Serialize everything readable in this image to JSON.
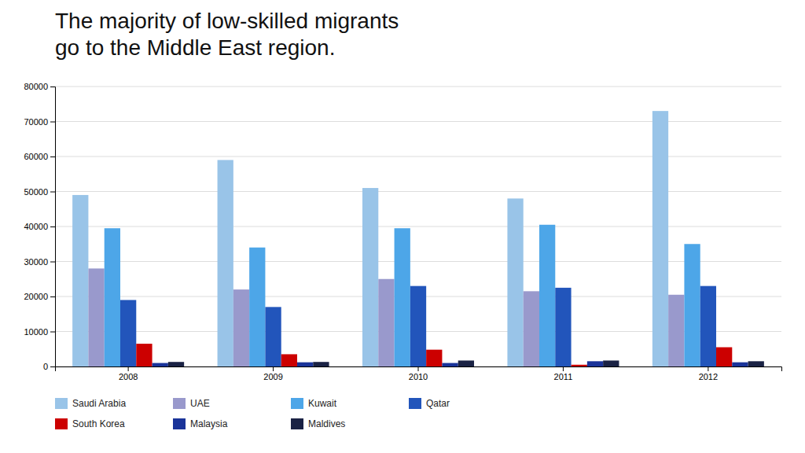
{
  "chart_data": {
    "type": "bar",
    "title": "The majority of low-skilled migrants\ngo to the Middle East region.",
    "categories": [
      "2008",
      "2009",
      "2010",
      "2011",
      "2012"
    ],
    "series": [
      {
        "name": "Saudi Arabia",
        "color": "#99c4e8",
        "values": [
          49000,
          59000,
          51000,
          48000,
          73000
        ]
      },
      {
        "name": "UAE",
        "color": "#9999cc",
        "values": [
          28000,
          22000,
          25000,
          21500,
          20500
        ]
      },
      {
        "name": "Kuwait",
        "color": "#4da6e8",
        "values": [
          39500,
          34000,
          39500,
          40500,
          35000
        ]
      },
      {
        "name": "Qatar",
        "color": "#2255bb",
        "values": [
          19000,
          17000,
          23000,
          22500,
          23000
        ]
      },
      {
        "name": "South Korea",
        "color": "#cc0000",
        "values": [
          6500,
          3500,
          4800,
          500,
          5500
        ]
      },
      {
        "name": "Malaysia",
        "color": "#1a3399",
        "values": [
          1000,
          1200,
          1000,
          1500,
          1200
        ]
      },
      {
        "name": "Maldives",
        "color": "#1a2244",
        "values": [
          1300,
          1300,
          1700,
          1700,
          1500
        ]
      }
    ],
    "ylim": [
      0,
      80000
    ],
    "yticks": [
      0,
      10000,
      20000,
      30000,
      40000,
      50000,
      60000,
      70000,
      80000
    ],
    "grid": true,
    "legend": "bottom"
  }
}
